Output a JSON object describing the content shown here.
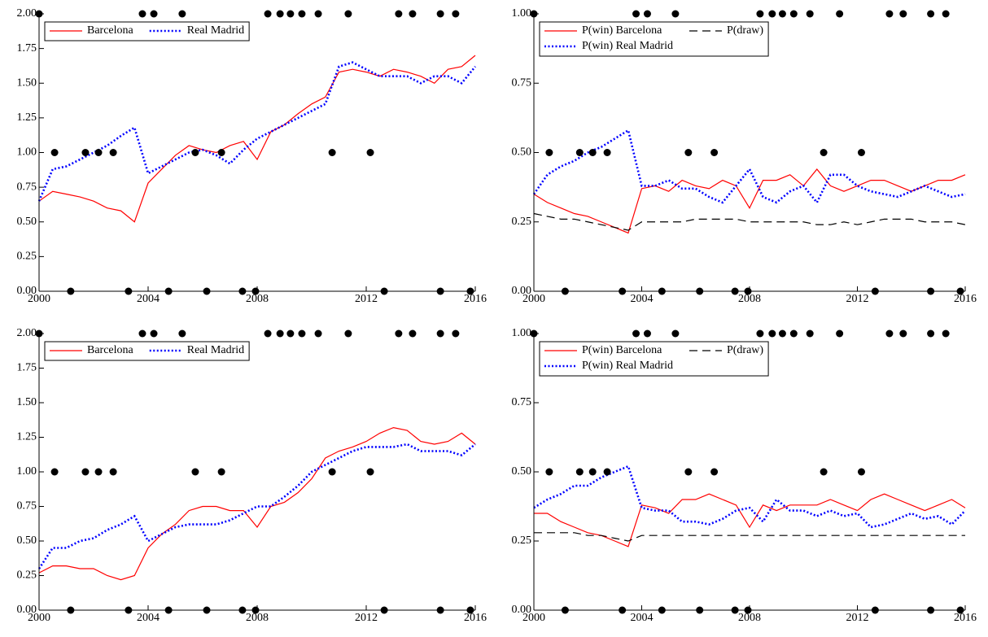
{
  "chart_data": [
    {
      "type": "line",
      "x": [
        2000,
        2000.5,
        2001,
        2001.5,
        2002,
        2002.5,
        2003,
        2003.5,
        2004,
        2004.5,
        2005,
        2005.5,
        2006,
        2006.5,
        2007,
        2007.5,
        2008,
        2008.5,
        2009,
        2009.5,
        2010,
        2010.5,
        2011,
        2011.5,
        2012,
        2012.5,
        2013,
        2013.5,
        2014,
        2014.5,
        2015,
        2015.5,
        2016
      ],
      "xlim": [
        2000,
        2016
      ],
      "xticks": [
        2000,
        2004,
        2008,
        2012,
        2016
      ],
      "ylim": [
        0,
        2
      ],
      "yticks": [
        {
          "value": 0,
          "label": "0.00"
        },
        {
          "value": 0.25,
          "label": "0.25"
        },
        {
          "value": 0.5,
          "label": "0.50"
        },
        {
          "value": 0.75,
          "label": "0.75"
        },
        {
          "value": 1,
          "label": "1.00"
        },
        {
          "value": 1.25,
          "label": "1.25"
        },
        {
          "value": 1.5,
          "label": "1.50"
        },
        {
          "value": 1.75,
          "label": "1.75"
        },
        {
          "value": 2,
          "label": "2.00"
        }
      ],
      "series": [
        {
          "name": "Barcelona",
          "color": "#ff0000",
          "line_style": "solid",
          "values": [
            0.65,
            0.72,
            0.7,
            0.68,
            0.65,
            0.6,
            0.58,
            0.5,
            0.78,
            0.88,
            0.98,
            1.05,
            1.02,
            1.0,
            1.05,
            1.08,
            0.95,
            1.15,
            1.2,
            1.28,
            1.35,
            1.4,
            1.58,
            1.6,
            1.58,
            1.55,
            1.6,
            1.58,
            1.55,
            1.5,
            1.6,
            1.62,
            1.7
          ]
        },
        {
          "name": "Real Madrid",
          "color": "#0000ff",
          "line_style": "dotted",
          "values": [
            0.65,
            0.88,
            0.9,
            0.95,
            1.0,
            1.05,
            1.12,
            1.18,
            0.85,
            0.9,
            0.95,
            1.0,
            1.02,
            0.98,
            0.92,
            1.02,
            1.1,
            1.15,
            1.2,
            1.25,
            1.3,
            1.35,
            1.62,
            1.65,
            1.6,
            1.55,
            1.55,
            1.55,
            1.5,
            1.55,
            1.55,
            1.5,
            1.62
          ]
        }
      ],
      "markers": {
        "color": "#000000",
        "x": [
          2000.0,
          2003.79,
          2004.21,
          2005.25,
          2008.39,
          2008.84,
          2009.22,
          2009.64,
          2010.24,
          2011.34,
          2013.19,
          2013.7,
          2014.72,
          2015.28,
          2000.57,
          2001.7,
          2002.18,
          2002.72,
          2005.73,
          2006.69,
          2010.75,
          2012.15,
          2001.16,
          2003.28,
          2004.75,
          2006.15,
          2007.46,
          2007.94,
          2012.66,
          2014.72,
          2015.82
        ],
        "y": [
          2,
          2,
          2,
          2,
          2,
          2,
          2,
          2,
          2,
          2,
          2,
          2,
          2,
          2,
          1,
          1,
          1,
          1,
          1,
          1,
          1,
          1,
          0,
          0,
          0,
          0,
          0,
          0,
          0,
          0,
          0
        ]
      }
    },
    {
      "type": "line",
      "x": [
        2000,
        2000.5,
        2001,
        2001.5,
        2002,
        2002.5,
        2003,
        2003.5,
        2004,
        2004.5,
        2005,
        2005.5,
        2006,
        2006.5,
        2007,
        2007.5,
        2008,
        2008.5,
        2009,
        2009.5,
        2010,
        2010.5,
        2011,
        2011.5,
        2012,
        2012.5,
        2013,
        2013.5,
        2014,
        2014.5,
        2015,
        2015.5,
        2016
      ],
      "xlim": [
        2000,
        2016
      ],
      "xticks": [
        2000,
        2004,
        2008,
        2012,
        2016
      ],
      "ylim": [
        0,
        1
      ],
      "yticks": [
        {
          "value": 0,
          "label": "0.00"
        },
        {
          "value": 0.25,
          "label": "0.25"
        },
        {
          "value": 0.5,
          "label": "0.50"
        },
        {
          "value": 0.75,
          "label": "0.75"
        },
        {
          "value": 1,
          "label": "1.00"
        }
      ],
      "series": [
        {
          "name": "P(win) Barcelona",
          "color": "#ff0000",
          "line_style": "solid",
          "values": [
            0.35,
            0.32,
            0.3,
            0.28,
            0.27,
            0.25,
            0.23,
            0.21,
            0.37,
            0.38,
            0.36,
            0.4,
            0.38,
            0.37,
            0.4,
            0.38,
            0.3,
            0.4,
            0.4,
            0.42,
            0.38,
            0.44,
            0.38,
            0.36,
            0.38,
            0.4,
            0.4,
            0.38,
            0.36,
            0.38,
            0.4,
            0.4,
            0.42
          ]
        },
        {
          "name": "P(win) Real Madrid",
          "color": "#0000ff",
          "line_style": "dotted",
          "values": [
            0.35,
            0.42,
            0.45,
            0.47,
            0.5,
            0.52,
            0.55,
            0.58,
            0.38,
            0.38,
            0.4,
            0.37,
            0.37,
            0.34,
            0.32,
            0.38,
            0.44,
            0.34,
            0.32,
            0.36,
            0.38,
            0.32,
            0.42,
            0.42,
            0.38,
            0.36,
            0.35,
            0.34,
            0.36,
            0.38,
            0.36,
            0.34,
            0.35
          ]
        },
        {
          "name": "P(draw)",
          "color": "#000000",
          "line_style": "dashed",
          "values": [
            0.28,
            0.27,
            0.26,
            0.26,
            0.25,
            0.24,
            0.23,
            0.22,
            0.25,
            0.25,
            0.25,
            0.25,
            0.26,
            0.26,
            0.26,
            0.26,
            0.25,
            0.25,
            0.25,
            0.25,
            0.25,
            0.24,
            0.24,
            0.25,
            0.24,
            0.25,
            0.26,
            0.26,
            0.26,
            0.25,
            0.25,
            0.25,
            0.24
          ]
        }
      ],
      "markers": {
        "color": "#000000",
        "x": [
          2000.0,
          2003.79,
          2004.21,
          2005.25,
          2008.39,
          2008.84,
          2009.22,
          2009.64,
          2010.24,
          2011.34,
          2013.19,
          2013.7,
          2014.72,
          2015.28,
          2000.57,
          2001.7,
          2002.18,
          2002.72,
          2005.73,
          2006.69,
          2010.75,
          2012.15,
          2001.16,
          2003.28,
          2004.75,
          2006.15,
          2007.46,
          2007.94,
          2012.66,
          2014.72,
          2015.82
        ],
        "y": [
          1,
          1,
          1,
          1,
          1,
          1,
          1,
          1,
          1,
          1,
          1,
          1,
          1,
          1,
          0.5,
          0.5,
          0.5,
          0.5,
          0.5,
          0.5,
          0.5,
          0.5,
          0,
          0,
          0,
          0,
          0,
          0,
          0,
          0,
          0
        ]
      }
    },
    {
      "type": "line",
      "x": [
        2000,
        2000.5,
        2001,
        2001.5,
        2002,
        2002.5,
        2003,
        2003.5,
        2004,
        2004.5,
        2005,
        2005.5,
        2006,
        2006.5,
        2007,
        2007.5,
        2008,
        2008.5,
        2009,
        2009.5,
        2010,
        2010.5,
        2011,
        2011.5,
        2012,
        2012.5,
        2013,
        2013.5,
        2014,
        2014.5,
        2015,
        2015.5,
        2016
      ],
      "xlim": [
        2000,
        2016
      ],
      "xticks": [
        2000,
        2004,
        2008,
        2012,
        2016
      ],
      "ylim": [
        0,
        2
      ],
      "yticks": [
        {
          "value": 0,
          "label": "0.00"
        },
        {
          "value": 0.25,
          "label": "0.25"
        },
        {
          "value": 0.5,
          "label": "0.50"
        },
        {
          "value": 0.75,
          "label": "0.75"
        },
        {
          "value": 1,
          "label": "1.00"
        },
        {
          "value": 1.25,
          "label": "1.25"
        },
        {
          "value": 1.5,
          "label": "1.50"
        },
        {
          "value": 1.75,
          "label": "1.75"
        },
        {
          "value": 2,
          "label": "2.00"
        }
      ],
      "series": [
        {
          "name": "Barcelona",
          "color": "#ff0000",
          "line_style": "solid",
          "values": [
            0.27,
            0.32,
            0.32,
            0.3,
            0.3,
            0.25,
            0.22,
            0.25,
            0.45,
            0.55,
            0.62,
            0.72,
            0.75,
            0.75,
            0.72,
            0.72,
            0.6,
            0.75,
            0.78,
            0.85,
            0.95,
            1.1,
            1.15,
            1.18,
            1.22,
            1.28,
            1.32,
            1.3,
            1.22,
            1.2,
            1.22,
            1.28,
            1.2
          ]
        },
        {
          "name": "Real Madrid",
          "color": "#0000ff",
          "line_style": "dotted",
          "values": [
            0.3,
            0.45,
            0.45,
            0.5,
            0.52,
            0.58,
            0.62,
            0.68,
            0.5,
            0.55,
            0.6,
            0.62,
            0.62,
            0.62,
            0.65,
            0.7,
            0.75,
            0.75,
            0.82,
            0.9,
            1.0,
            1.05,
            1.1,
            1.15,
            1.18,
            1.18,
            1.18,
            1.2,
            1.15,
            1.15,
            1.15,
            1.12,
            1.2
          ]
        }
      ],
      "markers": {
        "color": "#000000",
        "x": [
          2000.0,
          2003.79,
          2004.21,
          2005.25,
          2008.39,
          2008.84,
          2009.22,
          2009.64,
          2010.24,
          2011.34,
          2013.19,
          2013.7,
          2014.72,
          2015.28,
          2000.57,
          2001.7,
          2002.18,
          2002.72,
          2005.73,
          2006.69,
          2010.75,
          2012.15,
          2001.16,
          2003.28,
          2004.75,
          2006.15,
          2007.46,
          2007.94,
          2012.66,
          2014.72,
          2015.82
        ],
        "y": [
          2,
          2,
          2,
          2,
          2,
          2,
          2,
          2,
          2,
          2,
          2,
          2,
          2,
          2,
          1,
          1,
          1,
          1,
          1,
          1,
          1,
          1,
          0,
          0,
          0,
          0,
          0,
          0,
          0,
          0,
          0
        ]
      }
    },
    {
      "type": "line",
      "x": [
        2000,
        2000.5,
        2001,
        2001.5,
        2002,
        2002.5,
        2003,
        2003.5,
        2004,
        2004.5,
        2005,
        2005.5,
        2006,
        2006.5,
        2007,
        2007.5,
        2008,
        2008.5,
        2009,
        2009.5,
        2010,
        2010.5,
        2011,
        2011.5,
        2012,
        2012.5,
        2013,
        2013.5,
        2014,
        2014.5,
        2015,
        2015.5,
        2016
      ],
      "xlim": [
        2000,
        2016
      ],
      "xticks": [
        2000,
        2004,
        2008,
        2012,
        2016
      ],
      "ylim": [
        0,
        1
      ],
      "yticks": [
        {
          "value": 0,
          "label": "0.00"
        },
        {
          "value": 0.25,
          "label": "0.25"
        },
        {
          "value": 0.5,
          "label": "0.50"
        },
        {
          "value": 0.75,
          "label": "0.75"
        },
        {
          "value": 1,
          "label": "1.00"
        }
      ],
      "series": [
        {
          "name": "P(win) Barcelona",
          "color": "#ff0000",
          "line_style": "solid",
          "values": [
            0.35,
            0.35,
            0.32,
            0.3,
            0.28,
            0.27,
            0.25,
            0.23,
            0.38,
            0.37,
            0.35,
            0.4,
            0.4,
            0.42,
            0.4,
            0.38,
            0.3,
            0.38,
            0.36,
            0.38,
            0.38,
            0.38,
            0.4,
            0.38,
            0.36,
            0.4,
            0.42,
            0.4,
            0.38,
            0.36,
            0.38,
            0.4,
            0.37
          ]
        },
        {
          "name": "P(win) Real Madrid",
          "color": "#0000ff",
          "line_style": "dotted",
          "values": [
            0.37,
            0.4,
            0.42,
            0.45,
            0.45,
            0.48,
            0.5,
            0.52,
            0.37,
            0.36,
            0.36,
            0.32,
            0.32,
            0.31,
            0.33,
            0.36,
            0.37,
            0.32,
            0.4,
            0.36,
            0.36,
            0.34,
            0.36,
            0.34,
            0.35,
            0.3,
            0.31,
            0.33,
            0.35,
            0.33,
            0.34,
            0.31,
            0.36
          ]
        },
        {
          "name": "P(draw)",
          "color": "#000000",
          "line_style": "dashed",
          "values": [
            0.28,
            0.28,
            0.28,
            0.28,
            0.27,
            0.27,
            0.26,
            0.25,
            0.27,
            0.27,
            0.27,
            0.27,
            0.27,
            0.27,
            0.27,
            0.27,
            0.27,
            0.27,
            0.27,
            0.27,
            0.27,
            0.27,
            0.27,
            0.27,
            0.27,
            0.27,
            0.27,
            0.27,
            0.27,
            0.27,
            0.27,
            0.27,
            0.27
          ]
        }
      ],
      "markers": {
        "color": "#000000",
        "x": [
          2000.0,
          2003.79,
          2004.21,
          2005.25,
          2008.39,
          2008.84,
          2009.22,
          2009.64,
          2010.24,
          2011.34,
          2013.19,
          2013.7,
          2014.72,
          2015.28,
          2000.57,
          2001.7,
          2002.18,
          2002.72,
          2005.73,
          2006.69,
          2010.75,
          2012.15,
          2001.16,
          2003.28,
          2004.75,
          2006.15,
          2007.46,
          2007.94,
          2012.66,
          2014.72,
          2015.82
        ],
        "y": [
          1,
          1,
          1,
          1,
          1,
          1,
          1,
          1,
          1,
          1,
          1,
          1,
          1,
          1,
          0.5,
          0.5,
          0.5,
          0.5,
          0.5,
          0.5,
          0.5,
          0.5,
          0,
          0,
          0,
          0,
          0,
          0,
          0,
          0,
          0
        ]
      }
    }
  ]
}
